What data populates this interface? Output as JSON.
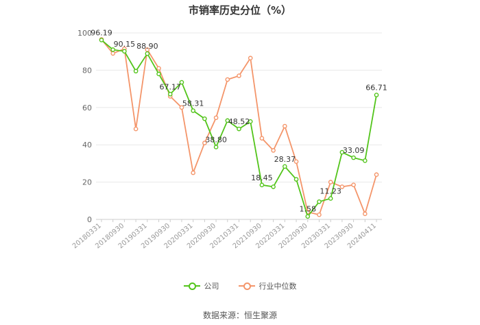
{
  "colors": {
    "company": "#52c41a",
    "industry": "#f4956a",
    "grid": "#e8e8e8",
    "axis": "#cccccc"
  },
  "source_text": "数据来源：恒生聚源",
  "chart_data": {
    "type": "line",
    "title": "市销率历史分位（%）",
    "ylim": [
      0,
      100
    ],
    "yticks": [
      0,
      20,
      40,
      60,
      80,
      100
    ],
    "grid": true,
    "legend_position": "bottom",
    "x": [
      "20180331",
      "",
      "20180930",
      "",
      "20190331",
      "",
      "20190930",
      "",
      "20200331",
      "",
      "20200930",
      "",
      "20210331",
      "",
      "20210930",
      "",
      "20220331",
      "",
      "20220930",
      "",
      "20230331",
      "",
      "20230930",
      "",
      "20240411"
    ],
    "x_tick_labels": [
      "20180331",
      "20180930",
      "20190331",
      "20190930",
      "20200331",
      "20200930",
      "20210331",
      "20210930",
      "20220331",
      "20220930",
      "20230331",
      "20230930",
      "20240411"
    ],
    "series": [
      {
        "name": "公司",
        "color": "#52c41a",
        "values": [
          96.19,
          91.0,
          90.15,
          79.5,
          88.9,
          78.0,
          67.17,
          73.5,
          58.31,
          54.0,
          38.8,
          53.0,
          48.52,
          52.5,
          18.45,
          17.5,
          28.37,
          21.5,
          1.58,
          9.5,
          11.23,
          36.0,
          33.09,
          31.5,
          66.71
        ],
        "labels": [
          "96.19",
          "",
          "90.15",
          "",
          "88.90",
          "",
          "67.17",
          "",
          "58.31",
          "",
          "38.80",
          "",
          "48.52",
          "",
          "18.45",
          "",
          "28.37",
          "",
          "1.58",
          "",
          "11.23",
          "",
          "33.09",
          "",
          "66.71"
        ]
      },
      {
        "name": "行业中位数",
        "color": "#f4956a",
        "values": [
          96.5,
          89.0,
          91.5,
          48.5,
          91.0,
          81.0,
          66.0,
          60.0,
          25.0,
          41.0,
          54.5,
          75.0,
          77.0,
          86.5,
          43.5,
          37.0,
          50.0,
          31.0,
          4.0,
          2.5,
          20.0,
          17.5,
          18.5,
          3.0,
          24.0
        ]
      }
    ]
  }
}
